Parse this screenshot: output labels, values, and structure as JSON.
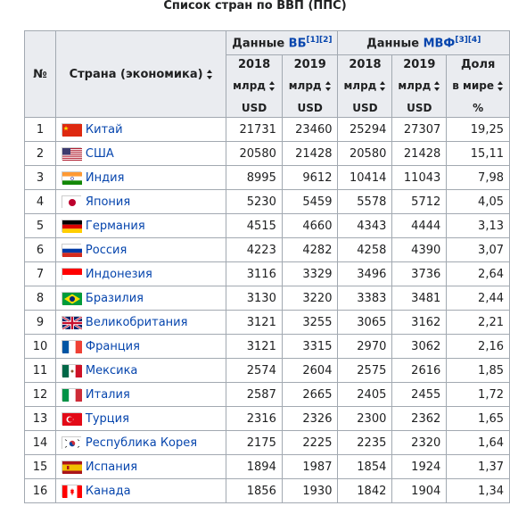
{
  "caption": "Список стран по ВВП (ППС)",
  "headers": {
    "index": "№",
    "country": "Страна (экономика)",
    "wb_group": "Данные ",
    "wb_link": "ВБ",
    "wb_refs": "[1][2]",
    "imf_group": "Данные ",
    "imf_link": "МВФ",
    "imf_refs": "[3][4]",
    "wb_2018_year": "2018",
    "wb_2018_unit": "млрд",
    "wb_2018_cur": "USD",
    "wb_2019_year": "2019",
    "wb_2019_unit": "млрд",
    "wb_2019_cur": "USD",
    "imf_2018_year": "2018",
    "imf_2018_unit": "млрд",
    "imf_2018_cur": "USD",
    "imf_2019_year": "2019",
    "imf_2019_unit": "млрд",
    "imf_2019_cur": "USD",
    "share_line1": "Доля",
    "share_line2": "в мире",
    "share_line3": "%"
  },
  "rows": [
    {
      "n": "1",
      "country": "Китай",
      "flag": "china-flag-icon",
      "wb2018": "21731",
      "wb2019": "23460",
      "imf2018": "25294",
      "imf2019": "27307",
      "share": "19,25"
    },
    {
      "n": "2",
      "country": "США",
      "flag": "usa-flag-icon",
      "wb2018": "20580",
      "wb2019": "21428",
      "imf2018": "20580",
      "imf2019": "21428",
      "share": "15,11"
    },
    {
      "n": "3",
      "country": "Индия",
      "flag": "india-flag-icon",
      "wb2018": "8995",
      "wb2019": "9612",
      "imf2018": "10414",
      "imf2019": "11043",
      "share": "7,98"
    },
    {
      "n": "4",
      "country": "Япония",
      "flag": "japan-flag-icon",
      "wb2018": "5230",
      "wb2019": "5459",
      "imf2018": "5578",
      "imf2019": "5712",
      "share": "4,05"
    },
    {
      "n": "5",
      "country": "Германия",
      "flag": "germany-flag-icon",
      "wb2018": "4515",
      "wb2019": "4660",
      "imf2018": "4343",
      "imf2019": "4444",
      "share": "3,13"
    },
    {
      "n": "6",
      "country": "Россия",
      "flag": "russia-flag-icon",
      "wb2018": "4223",
      "wb2019": "4282",
      "imf2018": "4258",
      "imf2019": "4390",
      "share": "3,07"
    },
    {
      "n": "7",
      "country": "Индонезия",
      "flag": "indonesia-flag-icon",
      "wb2018": "3116",
      "wb2019": "3329",
      "imf2018": "3496",
      "imf2019": "3736",
      "share": "2,64"
    },
    {
      "n": "8",
      "country": "Бразилия",
      "flag": "brazil-flag-icon",
      "wb2018": "3130",
      "wb2019": "3220",
      "imf2018": "3383",
      "imf2019": "3481",
      "share": "2,44"
    },
    {
      "n": "9",
      "country": "Великобритания",
      "flag": "uk-flag-icon",
      "wb2018": "3121",
      "wb2019": "3255",
      "imf2018": "3065",
      "imf2019": "3162",
      "share": "2,21"
    },
    {
      "n": "10",
      "country": "Франция",
      "flag": "france-flag-icon",
      "wb2018": "3121",
      "wb2019": "3315",
      "imf2018": "2970",
      "imf2019": "3062",
      "share": "2,16"
    },
    {
      "n": "11",
      "country": "Мексика",
      "flag": "mexico-flag-icon",
      "wb2018": "2574",
      "wb2019": "2604",
      "imf2018": "2575",
      "imf2019": "2616",
      "share": "1,85"
    },
    {
      "n": "12",
      "country": "Италия",
      "flag": "italy-flag-icon",
      "wb2018": "2587",
      "wb2019": "2665",
      "imf2018": "2405",
      "imf2019": "2455",
      "share": "1,72"
    },
    {
      "n": "13",
      "country": "Турция",
      "flag": "turkey-flag-icon",
      "wb2018": "2316",
      "wb2019": "2326",
      "imf2018": "2300",
      "imf2019": "2362",
      "share": "1,65"
    },
    {
      "n": "14",
      "country": "Республика Корея",
      "flag": "korea-flag-icon",
      "wb2018": "2175",
      "wb2019": "2225",
      "imf2018": "2235",
      "imf2019": "2320",
      "share": "1,64"
    },
    {
      "n": "15",
      "country": "Испания",
      "flag": "spain-flag-icon",
      "wb2018": "1894",
      "wb2019": "1987",
      "imf2018": "1854",
      "imf2019": "1924",
      "share": "1,37"
    },
    {
      "n": "16",
      "country": "Канада",
      "flag": "canada-flag-icon",
      "wb2018": "1856",
      "wb2019": "1930",
      "imf2018": "1842",
      "imf2019": "1904",
      "share": "1,34"
    }
  ],
  "colors": {
    "link": "#0645ad",
    "header_bg": "#eaecf0",
    "border": "#a2a9b1"
  }
}
